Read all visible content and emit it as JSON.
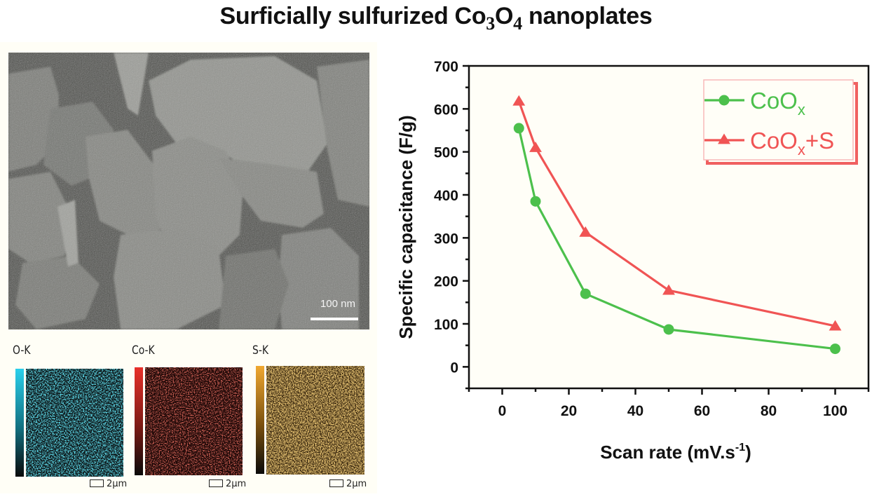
{
  "title": {
    "main": "Surficially sulfurized Co",
    "sub1": "3",
    "mid": "O",
    "sub2": "4",
    "end": " nanoplates"
  },
  "sem": {
    "scale_label": "100 nm"
  },
  "eds_maps": [
    {
      "label": "O-K",
      "scale": "2μm",
      "color": "#2ad0ec"
    },
    {
      "label": "Co-K",
      "scale": "2μm",
      "color": "#e8302a"
    },
    {
      "label": "S-K",
      "scale": "2μm",
      "color": "#f0a830"
    }
  ],
  "chart_data": {
    "type": "line",
    "title": "",
    "xlabel": "Scan rate (mV.s",
    "xlabel_sup": "-1",
    "xlabel_end": ")",
    "ylabel": "Specific capacitance (F/g)",
    "xlim": [
      -10,
      110
    ],
    "ylim": [
      -50,
      700
    ],
    "xticks": [
      0,
      20,
      40,
      60,
      80,
      100
    ],
    "yticks": [
      0,
      100,
      200,
      300,
      400,
      500,
      600,
      700
    ],
    "xtick_labels": [
      "0",
      "20",
      "40",
      "60",
      "80",
      "100"
    ],
    "ytick_labels": [
      "0",
      "100",
      "200",
      "300",
      "400",
      "500",
      "600",
      "700"
    ],
    "x": [
      5,
      10,
      25,
      50,
      100
    ],
    "grid": false,
    "legend_position": "top-right",
    "series": [
      {
        "name": "CoO",
        "name_sub": "x",
        "name_suffix": "",
        "marker": "circle",
        "color": "#4cc04c",
        "values": [
          555,
          385,
          170,
          87,
          42
        ]
      },
      {
        "name": "CoO",
        "name_sub": "x",
        "name_suffix": "+S",
        "marker": "triangle",
        "color": "#f05454",
        "values": [
          618,
          510,
          313,
          178,
          95
        ]
      }
    ]
  }
}
